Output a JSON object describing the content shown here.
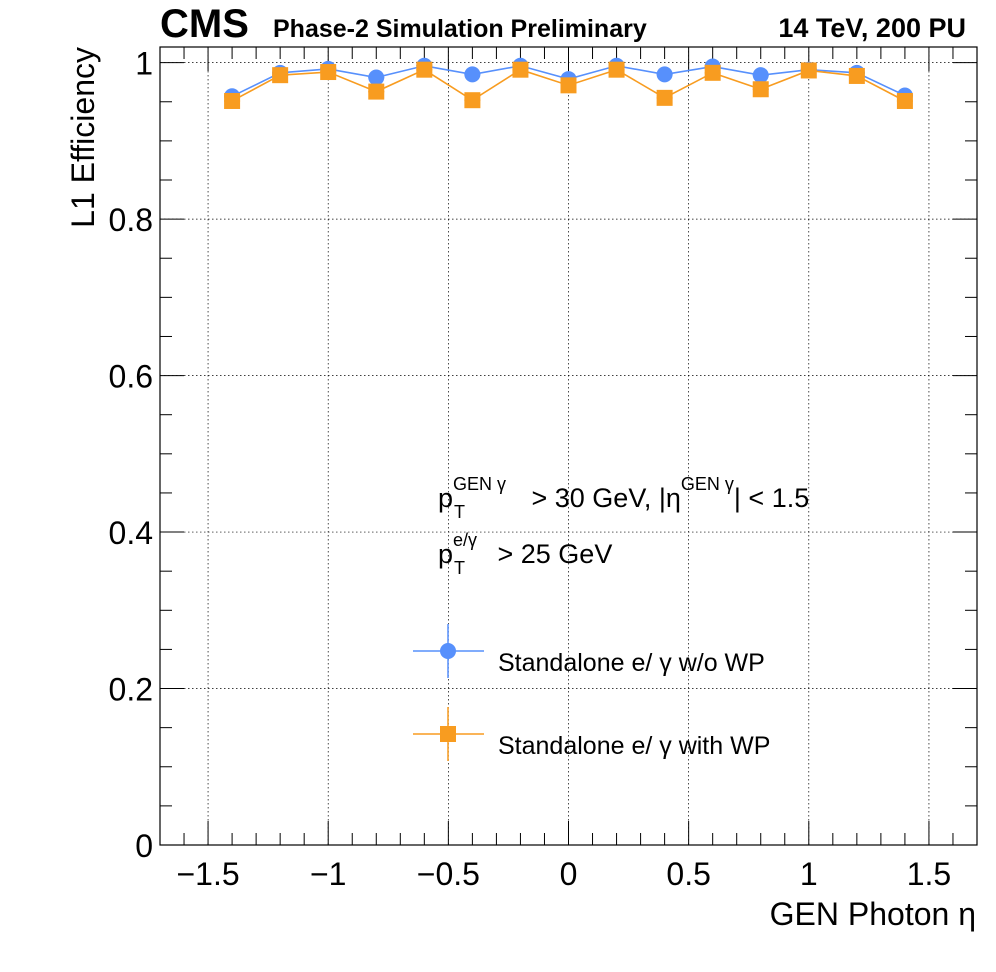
{
  "header": {
    "experiment": "CMS",
    "status": "Phase-2 Simulation Preliminary",
    "conditions": "14 TeV, 200 PU"
  },
  "cuts": {
    "line1": {
      "base": "p",
      "sub": "T",
      "sup": "GEN γ",
      "mid": " > 30 GeV, |η",
      "sup2": "GEN γ",
      "end": "| < 1.5"
    },
    "line2": {
      "base": "p",
      "sub": "T",
      "sup": "e/γ",
      "end": " > 25 GeV"
    }
  },
  "colors": {
    "series_wo_wp": "#5790fc",
    "series_with_wp": "#f89c20",
    "grid": "#000000",
    "axis": "#000000"
  },
  "chart_data": {
    "type": "scatter",
    "xlabel": "GEN Photon η",
    "ylabel": "L1 Efficiency",
    "xlim": [
      -1.7,
      1.7
    ],
    "ylim": [
      0,
      1.02
    ],
    "grid": true,
    "legend_position": "bottom-center",
    "x_ticks": [
      {
        "value": -1.5,
        "label": "−1.5"
      },
      {
        "value": -1.0,
        "label": "−1"
      },
      {
        "value": -0.5,
        "label": "−0.5"
      },
      {
        "value": 0.0,
        "label": "0"
      },
      {
        "value": 0.5,
        "label": "0.5"
      },
      {
        "value": 1.0,
        "label": "1"
      },
      {
        "value": 1.5,
        "label": "1.5"
      }
    ],
    "y_ticks": [
      {
        "value": 0.0,
        "label": "0"
      },
      {
        "value": 0.2,
        "label": "0.2"
      },
      {
        "value": 0.4,
        "label": "0.4"
      },
      {
        "value": 0.6,
        "label": "0.6"
      },
      {
        "value": 0.8,
        "label": "0.8"
      },
      {
        "value": 1.0,
        "label": "1"
      }
    ],
    "x": [
      -1.4,
      -1.2,
      -1.0,
      -0.8,
      -0.6,
      -0.4,
      -0.2,
      0.0,
      0.2,
      0.4,
      0.6,
      0.8,
      1.0,
      1.2,
      1.4
    ],
    "series": [
      {
        "name": "Standalone e/ γ w/o WP",
        "marker": "circle",
        "values": [
          0.957,
          0.987,
          0.992,
          0.981,
          0.996,
          0.985,
          0.996,
          0.979,
          0.996,
          0.985,
          0.995,
          0.984,
          0.991,
          0.987,
          0.958
        ],
        "errors": [
          0.006,
          0.004,
          0.003,
          0.005,
          0.002,
          0.004,
          0.002,
          0.005,
          0.002,
          0.004,
          0.002,
          0.004,
          0.003,
          0.004,
          0.006
        ]
      },
      {
        "name": "Standalone e/ γ with WP",
        "marker": "square",
        "values": [
          0.951,
          0.984,
          0.988,
          0.963,
          0.991,
          0.952,
          0.991,
          0.971,
          0.991,
          0.955,
          0.987,
          0.966,
          0.99,
          0.983,
          0.951
        ],
        "errors": [
          0.01,
          0.008,
          0.006,
          0.01,
          0.006,
          0.009,
          0.006,
          0.009,
          0.006,
          0.009,
          0.008,
          0.01,
          0.006,
          0.008,
          0.01
        ]
      }
    ]
  }
}
